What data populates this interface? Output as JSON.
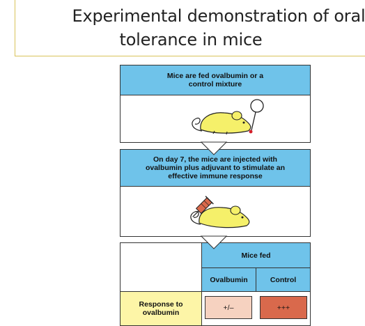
{
  "title": {
    "line1": "Experimental demonstration of oral",
    "line2": "tolerance in mice"
  },
  "steps": [
    {
      "label": "Mice are fed ovalbumin or a control mixture"
    },
    {
      "label": "On day 7, the mice are injected with ovalbumin plus  adjuvant to stimulate an effective immune response"
    }
  ],
  "table": {
    "group_header": "Mice fed",
    "columns": [
      "Ovalbumin",
      "Control"
    ],
    "row_label": "Response to ovalbumin",
    "values": [
      "+/–",
      "+++"
    ]
  },
  "colors": {
    "header_blue": "#6fc3ea",
    "mouse_yellow": "#f5f06a",
    "row_label_yellow": "#fdf5a7",
    "ovalbumin_cell": "#f6d2c0",
    "control_cell": "#d9694c",
    "title_border": "#d9c25a"
  },
  "icons": [
    "mouse-icon",
    "feeding-tube-icon",
    "syringe-icon",
    "down-arrow-icon"
  ]
}
